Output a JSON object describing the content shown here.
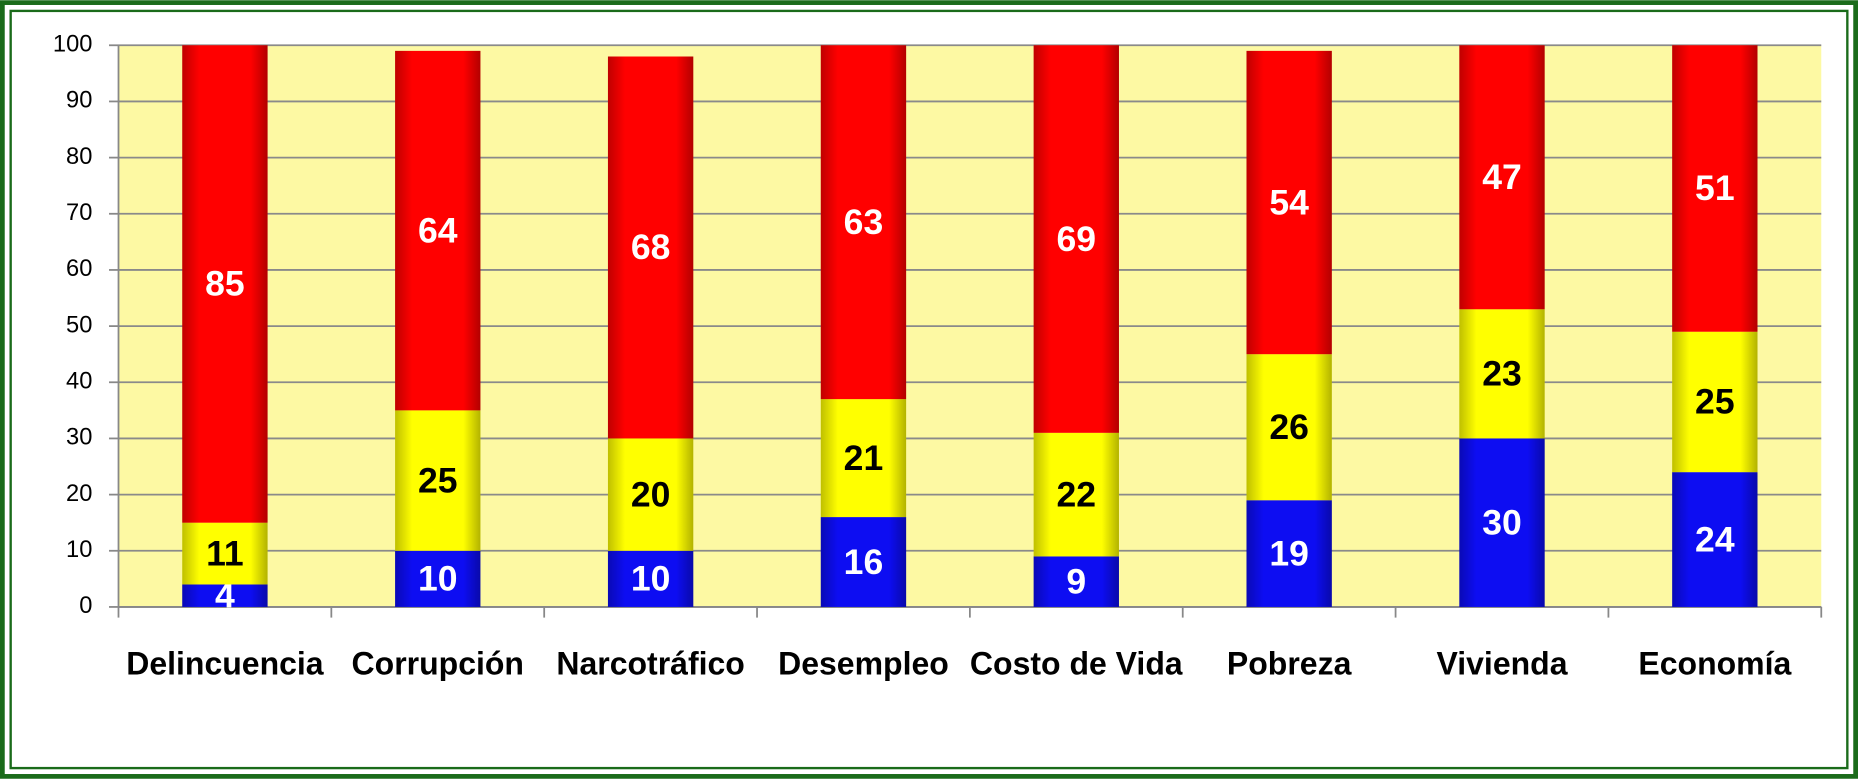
{
  "chart_data": {
    "type": "stacked_bar",
    "categories": [
      "Delincuencia",
      "Corrupción",
      "Narcotráfico",
      "Desempleo",
      "Costo de Vida",
      "Pobreza",
      "Vivienda",
      "Economía"
    ],
    "series": [
      {
        "color": "#0d0df2",
        "values": [
          4,
          10,
          10,
          16,
          9,
          19,
          30,
          24
        ]
      },
      {
        "color": "#ffff00",
        "values": [
          11,
          25,
          20,
          21,
          22,
          26,
          23,
          25
        ]
      },
      {
        "color": "#ff0000",
        "values": [
          85,
          64,
          68,
          63,
          69,
          54,
          47,
          51
        ]
      }
    ],
    "ylim": [
      0,
      100
    ],
    "yticks": [
      0,
      10,
      20,
      30,
      40,
      50,
      60,
      70,
      80,
      90,
      100
    ],
    "grid": true
  }
}
